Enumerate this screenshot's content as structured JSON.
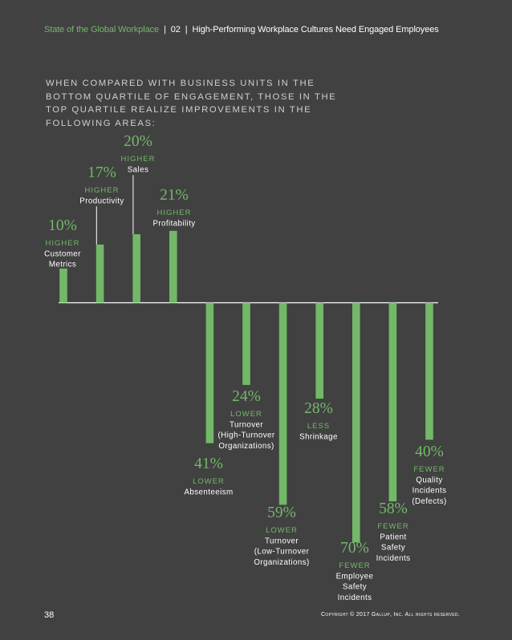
{
  "header": {
    "report": "State of the Global Workplace",
    "chapter": "02",
    "section": "High-Performing Workplace Cultures Need Engaged Employees",
    "separator": "|"
  },
  "intro": "WHEN COMPARED WITH BUSINESS UNITS IN THE BOTTOM QUARTILE OF ENGAGEMENT, THOSE IN THE TOP QUARTILE REALIZE IMPROVEMENTS IN THE FOLLOWING AREAS:",
  "colors": {
    "background": "#414141",
    "accent": "#72b868",
    "text": "#ffffff"
  },
  "chart_data": {
    "type": "bar",
    "title": "WHEN COMPARED WITH BUSINESS UNITS IN THE BOTTOM QUARTILE OF ENGAGEMENT, THOSE IN THE TOP QUARTILE REALIZE IMPROVEMENTS IN THE FOLLOWING AREAS:",
    "xlabel": "",
    "ylabel": "",
    "series": [
      {
        "pct": "10%",
        "value": 10,
        "direction": "HIGHER",
        "label": [
          "Customer",
          "Metrics"
        ]
      },
      {
        "pct": "17%",
        "value": 17,
        "direction": "HIGHER",
        "label": [
          "Productivity"
        ]
      },
      {
        "pct": "20%",
        "value": 20,
        "direction": "HIGHER",
        "label": [
          "Sales"
        ]
      },
      {
        "pct": "21%",
        "value": 21,
        "direction": "HIGHER",
        "label": [
          "Profitability"
        ]
      },
      {
        "pct": "41%",
        "value": -41,
        "direction": "LOWER",
        "label": [
          "Absenteeism"
        ]
      },
      {
        "pct": "24%",
        "value": -24,
        "direction": "LOWER",
        "label": [
          "Turnover",
          "(High-Turnover",
          "Organizations)"
        ]
      },
      {
        "pct": "59%",
        "value": -59,
        "direction": "LOWER",
        "label": [
          "Turnover",
          "(Low-Turnover",
          "Organizations)"
        ]
      },
      {
        "pct": "28%",
        "value": -28,
        "direction": "LESS",
        "label": [
          "Shrinkage"
        ]
      },
      {
        "pct": "70%",
        "value": -70,
        "direction": "FEWER",
        "label": [
          "Employee",
          "Safety",
          "Incidents"
        ]
      },
      {
        "pct": "58%",
        "value": -58,
        "direction": "FEWER",
        "label": [
          "Patient",
          "Safety",
          "Incidents"
        ]
      },
      {
        "pct": "40%",
        "value": -40,
        "direction": "FEWER",
        "label": [
          "Quality",
          "Incidents",
          "(Defects)"
        ]
      }
    ]
  },
  "footer": {
    "page_number": "38",
    "copyright": "Copyright © 2017 Gallup, Inc. All rights reserved."
  }
}
